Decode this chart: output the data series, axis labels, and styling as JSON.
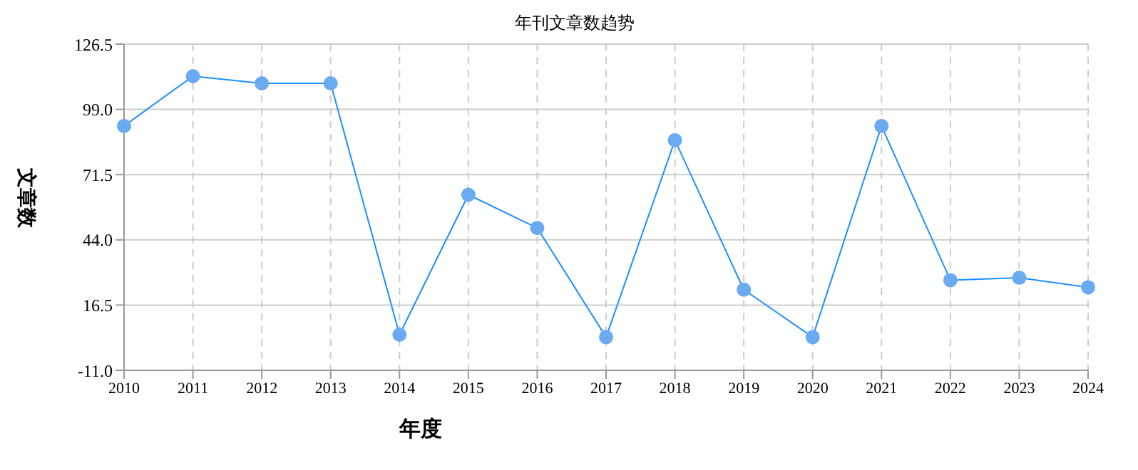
{
  "chart_data": {
    "type": "line",
    "title": "年刊文章数趋势",
    "xlabel": "年度",
    "ylabel": "文章数",
    "categories": [
      "2010",
      "2011",
      "2012",
      "2013",
      "2014",
      "2015",
      "2016",
      "2017",
      "2018",
      "2019",
      "2020",
      "2021",
      "2022",
      "2023",
      "2024"
    ],
    "series": [
      {
        "color": "#1e90ff",
        "values": [
          92,
          113,
          110,
          110,
          4,
          63,
          49,
          3,
          86,
          23,
          3,
          92,
          27,
          28,
          24
        ]
      }
    ],
    "ylim": [
      -11,
      126.5
    ],
    "yticks": [
      {
        "value": -11,
        "label": "-11.0"
      },
      {
        "value": 16.5,
        "label": "16.5"
      },
      {
        "value": 44,
        "label": "44.0"
      },
      {
        "value": 71.5,
        "label": "71.5"
      },
      {
        "value": 99,
        "label": "99.0"
      },
      {
        "value": 126.5,
        "label": "126.5"
      }
    ],
    "grid": true,
    "marker": "circle",
    "line_style": "solid",
    "legend": false
  }
}
